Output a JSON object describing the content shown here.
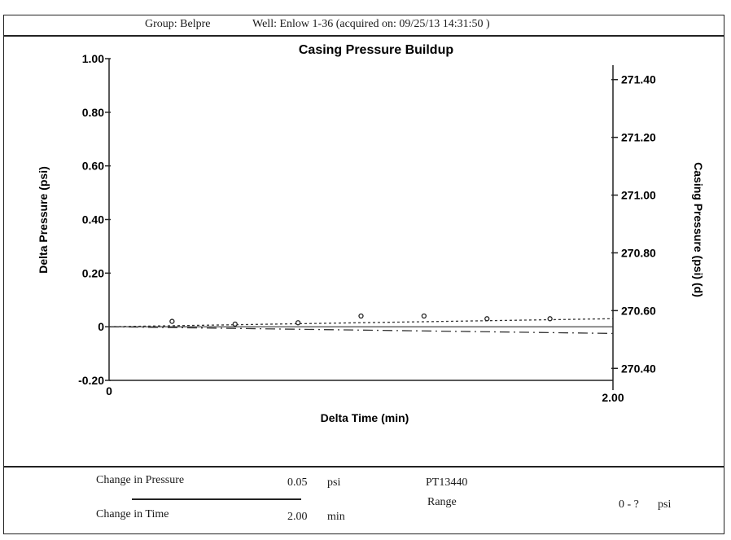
{
  "header": {
    "group": "Group: Belpre",
    "well": "Well: Enlow 1-36 (acquired on: 09/25/13 14:31:50 )"
  },
  "chart_data": {
    "type": "scatter",
    "title": "Casing Pressure Buildup",
    "xlabel": "Delta Time (min)",
    "ylabel": "Delta Pressure (psi)",
    "y2label": "Casing Pressure (psi) (d)",
    "xlim": [
      0,
      2.0
    ],
    "ylim": [
      -0.2,
      1.0
    ],
    "y2lim": [
      270.35,
      271.45
    ],
    "x_ticks": [
      "0",
      "2.00"
    ],
    "y_ticks": [
      {
        "v": 1.0,
        "label": "1.00"
      },
      {
        "v": 0.8,
        "label": "0.80"
      },
      {
        "v": 0.6,
        "label": "0.60"
      },
      {
        "v": 0.4,
        "label": "0.40"
      },
      {
        "v": 0.2,
        "label": "0.20"
      },
      {
        "v": 0.0,
        "label": "0"
      },
      {
        "v": -0.2,
        "label": "-0.20"
      }
    ],
    "y2_ticks": [
      {
        "v": 271.4,
        "label": "271.40"
      },
      {
        "v": 271.2,
        "label": "271.20"
      },
      {
        "v": 271.0,
        "label": "271.00"
      },
      {
        "v": 270.8,
        "label": "270.80"
      },
      {
        "v": 270.6,
        "label": "270.60"
      },
      {
        "v": 270.4,
        "label": "270.40"
      }
    ],
    "points": [
      {
        "x": 0.25,
        "y": 0.02
      },
      {
        "x": 0.5,
        "y": 0.01
      },
      {
        "x": 0.75,
        "y": 0.015
      },
      {
        "x": 1.0,
        "y": 0.04
      },
      {
        "x": 1.25,
        "y": 0.04
      },
      {
        "x": 1.5,
        "y": 0.03
      },
      {
        "x": 1.75,
        "y": 0.03
      }
    ],
    "fit_line": [
      {
        "x": 0,
        "y": 0.0
      },
      {
        "x": 2.0,
        "y": 0.03
      }
    ],
    "casing_line": [
      {
        "x": 0,
        "y": 0.0
      },
      {
        "x": 2.0,
        "y": -0.025
      }
    ]
  },
  "footer": {
    "change_pressure_label": "Change in Pressure",
    "change_pressure_value": "0.05",
    "change_pressure_unit": "psi",
    "change_time_label": "Change in Time",
    "change_time_value": "2.00",
    "change_time_unit": "min",
    "sensor_id": "PT13440",
    "range_label": "Range",
    "range_value": "0 - ?",
    "range_unit": "psi"
  }
}
